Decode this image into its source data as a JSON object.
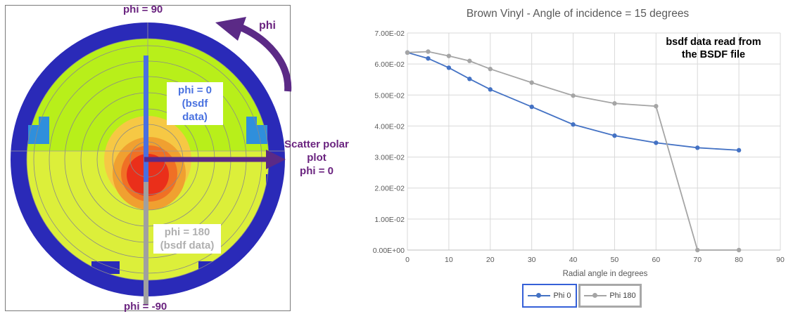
{
  "polar": {
    "label_top": "phi = 90",
    "label_bottom": "phi = -90",
    "label_phi": "phi",
    "label_scatter": "Scatter polar\nplot\nphi = 0",
    "label_phi0": "phi = 0\n(bsdf data)",
    "label_phi180": "phi = 180\n(bsdf data)",
    "colors": {
      "outer_ring": "#2a2ab8",
      "light_blue": "#2f8fdc",
      "yellow_green": "#b8ef1a",
      "yellow": "#dcef3a",
      "orange": "#f0a030",
      "red": "#ea2f1a",
      "purple_arrow": "#5b2a86",
      "blue_bar": "#4a6fe0",
      "gray_bar": "#a0a0a0"
    }
  },
  "chart_data": {
    "type": "line",
    "title": "Brown Vinyl - Angle of incidence = 15 degrees",
    "xlabel": "Radial angle in degrees",
    "ylabel": "",
    "xlim": [
      0,
      90
    ],
    "ylim": [
      0,
      0.07
    ],
    "x_ticks": [
      "0",
      "10",
      "20",
      "30",
      "40",
      "50",
      "60",
      "70",
      "80",
      "90"
    ],
    "y_ticks": [
      "0.00E+00",
      "1.00E-02",
      "2.00E-02",
      "3.00E-02",
      "4.00E-02",
      "5.00E-02",
      "6.00E-02",
      "7.00E-02"
    ],
    "grid": true,
    "annotation": "bsdf data read from\nthe BSDF file",
    "legend_position": "bottom",
    "series": [
      {
        "name": "Phi 0",
        "color": "#4472c4",
        "x": [
          0,
          5,
          10,
          15,
          20,
          30,
          40,
          50,
          60,
          70,
          80
        ],
        "y": [
          0.0637,
          0.0618,
          0.0588,
          0.0552,
          0.0518,
          0.0462,
          0.0405,
          0.0369,
          0.0346,
          0.033,
          0.0322
        ]
      },
      {
        "name": "Phi 180",
        "color": "#a5a5a5",
        "x": [
          0,
          5,
          10,
          15,
          20,
          30,
          40,
          50,
          60,
          70,
          80
        ],
        "y": [
          0.0637,
          0.064,
          0.0626,
          0.061,
          0.0584,
          0.054,
          0.0498,
          0.0473,
          0.0464,
          0.0,
          0.0
        ]
      }
    ]
  }
}
